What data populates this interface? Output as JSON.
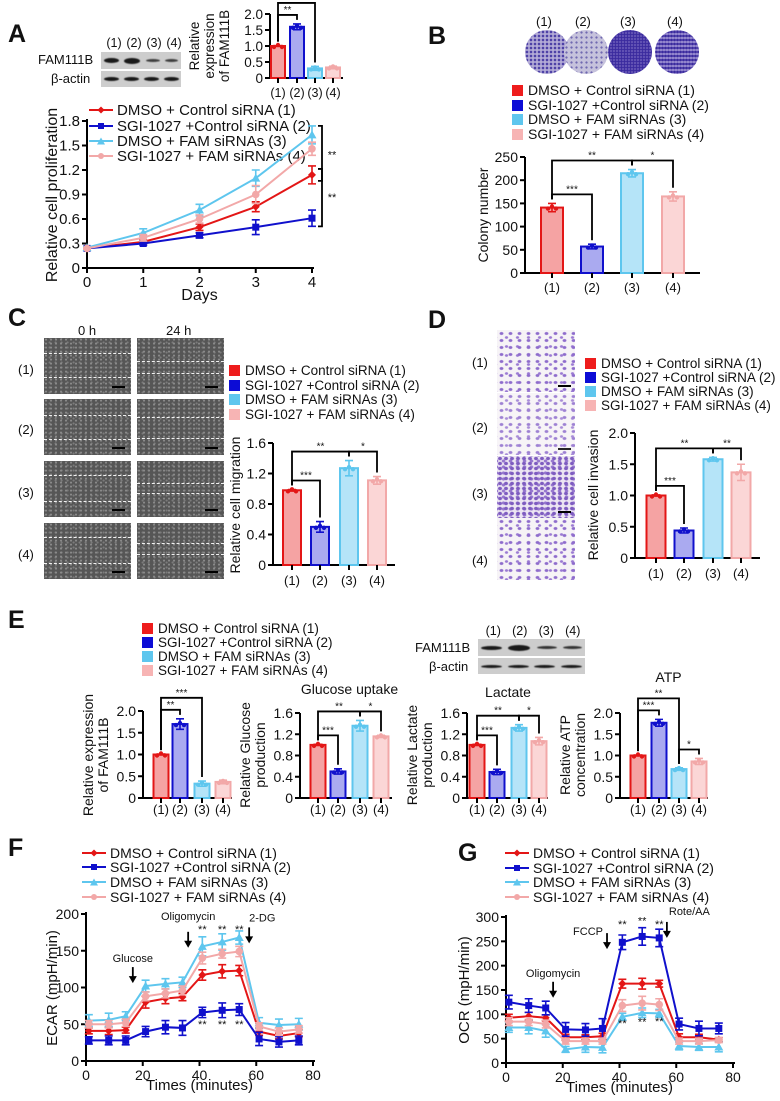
{
  "panel_labels": [
    "A",
    "B",
    "C",
    "D",
    "E",
    "F",
    "G"
  ],
  "groups": [
    "DMSO + Control siRNA (1)",
    "SGI-1027 +Control siRNA (2)",
    "DMSO + FAM siRNAs (3)",
    "SGI-1027 + FAM siRNAs (4)"
  ],
  "group_numbers": [
    "(1)",
    "(2)",
    "(3)",
    "(4)"
  ],
  "colors": {
    "group_solid": [
      "#ee1c1c",
      "#0c0cd6",
      "#5ec6ee",
      "#f7b4b4"
    ],
    "group_fill": [
      "#f5a3a3",
      "#aaaaf0",
      "#b5e4f8",
      "#fbd6d6"
    ],
    "group_edge": [
      "#e31616",
      "#1010cc",
      "#5ec6ee",
      "#f2a8a8"
    ]
  },
  "western_blot": {
    "rows": [
      "FAM111B",
      "β-actin"
    ]
  },
  "wound_healing": {
    "time_points": [
      "0 h",
      "24 h"
    ]
  },
  "chart_data": [
    {
      "id": "fam111b-inset",
      "type": "bar",
      "categories": [
        "(1)",
        "(2)",
        "(3)",
        "(4)"
      ],
      "values": [
        1.0,
        1.6,
        0.3,
        0.33
      ],
      "errors": [
        0.01,
        0.09,
        0.06,
        0.04
      ],
      "ylabel": [
        "Relative",
        "expression",
        "of FAM111B"
      ],
      "yticks": [
        "0",
        "0.5",
        "1.0",
        "1.5",
        "2.0"
      ],
      "ylim": [
        0,
        2.0
      ],
      "significance": [
        {
          "pair": [
            1,
            2
          ],
          "label": "**"
        },
        {
          "pair": [
            1,
            3
          ],
          "label": "***"
        }
      ]
    },
    {
      "id": "proliferation",
      "type": "line",
      "x": [
        0,
        1,
        2,
        3,
        4
      ],
      "xticks": [
        "0",
        "1",
        "2",
        "3",
        "4"
      ],
      "yticks": [
        "0",
        "0.3",
        "0.6",
        "0.9",
        "1.2",
        "1.5",
        "1.8"
      ],
      "xlim": [
        0,
        4
      ],
      "ylim": [
        0,
        1.8
      ],
      "xlabel": "Days",
      "ylabel": [
        "Relative cell proliferation"
      ],
      "series": [
        {
          "name": "DMSO + Control siRNA (1)",
          "marker": "diamond",
          "color": "#e31616",
          "values": [
            0.24,
            0.32,
            0.5,
            0.75,
            1.14
          ],
          "errors": [
            0.01,
            0.02,
            0.04,
            0.06,
            0.11
          ]
        },
        {
          "name": "SGI-1027 +Control siRNA (2)",
          "marker": "square",
          "color": "#1010cc",
          "values": [
            0.24,
            0.3,
            0.4,
            0.5,
            0.61
          ],
          "errors": [
            0.01,
            0.02,
            0.03,
            0.09,
            0.1
          ]
        },
        {
          "name": "DMSO + FAM siRNAs (3)",
          "marker": "triangle",
          "color": "#5ec6ee",
          "values": [
            0.25,
            0.43,
            0.71,
            1.1,
            1.63
          ],
          "errors": [
            0.01,
            0.05,
            0.07,
            0.1,
            0.11
          ]
        },
        {
          "name": "SGI-1027 + FAM siRNAs (4)",
          "marker": "circle",
          "color": "#f2a8a8",
          "values": [
            0.24,
            0.37,
            0.6,
            0.9,
            1.46
          ],
          "errors": [
            0.01,
            0.04,
            0.05,
            0.11,
            0.08
          ]
        }
      ],
      "brackets": [
        {
          "series": [
            3,
            1
          ],
          "label": "**"
        },
        {
          "series": [
            1,
            2
          ],
          "label": "**"
        }
      ]
    },
    {
      "id": "colony",
      "type": "bar",
      "categories": [
        "(1)",
        "(2)",
        "(3)",
        "(4)"
      ],
      "values": [
        141,
        57,
        215,
        165
      ],
      "errors": [
        9,
        5,
        8,
        10
      ],
      "ylabel": [
        "Colony number"
      ],
      "yticks": [
        "0",
        "50",
        "100",
        "150",
        "200",
        "250"
      ],
      "ylim": [
        0,
        250
      ],
      "significance": [
        {
          "pair": [
            1,
            2
          ],
          "label": "***"
        },
        {
          "pair": [
            1,
            3
          ],
          "label": "**"
        },
        {
          "pair": [
            3,
            4
          ],
          "label": "*"
        }
      ]
    },
    {
      "id": "migration",
      "type": "bar",
      "categories": [
        "(1)",
        "(2)",
        "(3)",
        "(4)"
      ],
      "values": [
        0.98,
        0.5,
        1.27,
        1.11
      ],
      "errors": [
        0.01,
        0.07,
        0.1,
        0.05
      ],
      "ylabel": [
        "Relative cell migration"
      ],
      "yticks": [
        "0",
        "0.4",
        "0.8",
        "1.2",
        "1.6"
      ],
      "ylim": [
        0,
        1.6
      ],
      "significance": [
        {
          "pair": [
            1,
            2
          ],
          "label": "***"
        },
        {
          "pair": [
            1,
            3
          ],
          "label": "**"
        },
        {
          "pair": [
            3,
            4
          ],
          "label": "*"
        }
      ]
    },
    {
      "id": "invasion",
      "type": "bar",
      "categories": [
        "(1)",
        "(2)",
        "(3)",
        "(4)"
      ],
      "values": [
        1.0,
        0.44,
        1.58,
        1.37
      ],
      "errors": [
        0.01,
        0.04,
        0.03,
        0.13
      ],
      "ylabel": [
        "Relative cell invasion"
      ],
      "yticks": [
        "0",
        "0.5",
        "1.0",
        "1.5",
        "2.0"
      ],
      "ylim": [
        0,
        2.0
      ],
      "significance": [
        {
          "pair": [
            1,
            2
          ],
          "label": "***"
        },
        {
          "pair": [
            1,
            3
          ],
          "label": "**"
        },
        {
          "pair": [
            3,
            4
          ],
          "label": "**"
        }
      ]
    },
    {
      "id": "fam111b-expression",
      "type": "bar",
      "categories": [
        "(1)",
        "(2)",
        "(3)",
        "(4)"
      ],
      "values": [
        1.0,
        1.7,
        0.33,
        0.37
      ],
      "errors": [
        0.01,
        0.12,
        0.06,
        0.04
      ],
      "ylabel": [
        "Relative expression",
        "of FAM111B"
      ],
      "yticks": [
        "0",
        "0.5",
        "1.0",
        "1.5",
        "2.0"
      ],
      "ylim": [
        0,
        2.0
      ],
      "significance": [
        {
          "pair": [
            1,
            2
          ],
          "label": "**"
        },
        {
          "pair": [
            1,
            3
          ],
          "label": "***"
        }
      ]
    },
    {
      "id": "glucose",
      "type": "bar",
      "title": "Glucose uptake",
      "categories": [
        "(1)",
        "(2)",
        "(3)",
        "(4)"
      ],
      "values": [
        1.0,
        0.5,
        1.36,
        1.16
      ],
      "errors": [
        0.01,
        0.05,
        0.1,
        0.02
      ],
      "ylabel": [
        "Relative Glucose",
        "production"
      ],
      "yticks": [
        "0",
        "0.4",
        "0.8",
        "1.2",
        "1.6"
      ],
      "ylim": [
        0,
        1.6
      ],
      "significance": [
        {
          "pair": [
            1,
            2
          ],
          "label": "***"
        },
        {
          "pair": [
            1,
            3
          ],
          "label": "**"
        },
        {
          "pair": [
            3,
            4
          ],
          "label": "*"
        }
      ]
    },
    {
      "id": "lactate",
      "type": "bar",
      "title": "Lactate",
      "categories": [
        "(1)",
        "(2)",
        "(3)",
        "(4)"
      ],
      "values": [
        1.0,
        0.49,
        1.32,
        1.07
      ],
      "errors": [
        0.01,
        0.05,
        0.06,
        0.07
      ],
      "ylabel": [
        "Relative Lactate",
        "production"
      ],
      "yticks": [
        "0",
        "0.4",
        "0.8",
        "1.2",
        "1.6"
      ],
      "ylim": [
        0,
        1.6
      ],
      "significance": [
        {
          "pair": [
            1,
            2
          ],
          "label": "***"
        },
        {
          "pair": [
            1,
            3
          ],
          "label": "**"
        },
        {
          "pair": [
            3,
            4
          ],
          "label": "*"
        }
      ]
    },
    {
      "id": "atp",
      "type": "bar",
      "title": "ATP",
      "categories": [
        "(1)",
        "(2)",
        "(3)",
        "(4)"
      ],
      "values": [
        1.0,
        1.77,
        0.68,
        0.86
      ],
      "errors": [
        0.01,
        0.08,
        0.03,
        0.07
      ],
      "ylabel": [
        "Relative ATP",
        "concentration"
      ],
      "yticks": [
        "0",
        "0.5",
        "1.0",
        "1.5",
        "2.0"
      ],
      "ylim": [
        0,
        2.0
      ],
      "significance": [
        {
          "pair": [
            1,
            2
          ],
          "label": "***"
        },
        {
          "pair": [
            1,
            3
          ],
          "label": "**"
        },
        {
          "pair": [
            3,
            4
          ],
          "label": "*"
        }
      ]
    },
    {
      "id": "ecar",
      "type": "line",
      "x": [
        1,
        8,
        14,
        21,
        28,
        34,
        41,
        48,
        54,
        61,
        68,
        75
      ],
      "xticks": [
        "0",
        "20",
        "40",
        "60",
        "80"
      ],
      "yticks": [
        "0",
        "50",
        "100",
        "150",
        "200"
      ],
      "xlim": [
        0,
        80
      ],
      "ylim": [
        0,
        200
      ],
      "xlabel": "Times (minutes)",
      "ylabel": [
        "ECAR (mpH/min)"
      ],
      "series": [
        {
          "name": "DMSO + Control siRNA (1)",
          "marker": "diamond",
          "color": "#e31616",
          "values": [
            41,
            41,
            42,
            80,
            85,
            87,
            117,
            122,
            123,
            40,
            34,
            38
          ],
          "errors": [
            4,
            5,
            4,
            8,
            7,
            5,
            7,
            9,
            7,
            5,
            4,
            5
          ]
        },
        {
          "name": "SGI-1027 +Control siRNA (2)",
          "marker": "square",
          "color": "#1010cc",
          "values": [
            28,
            28,
            28,
            40,
            46,
            45,
            66,
            69,
            70,
            30,
            26,
            28
          ],
          "errors": [
            5,
            6,
            6,
            7,
            9,
            10,
            7,
            10,
            8,
            9,
            7,
            6
          ]
        },
        {
          "name": "DMSO + FAM siRNAs (3)",
          "marker": "triangle",
          "color": "#5ec6ee",
          "values": [
            55,
            56,
            61,
            102,
            105,
            107,
            156,
            162,
            168,
            52,
            49,
            50
          ],
          "errors": [
            8,
            9,
            6,
            8,
            7,
            7,
            13,
            11,
            9,
            7,
            8,
            8
          ]
        },
        {
          "name": "SGI-1027 + FAM siRNAs (4)",
          "marker": "circle",
          "color": "#f2a8a8",
          "values": [
            50,
            50,
            52,
            88,
            92,
            96,
            140,
            146,
            149,
            47,
            40,
            43
          ],
          "errors": [
            5,
            5,
            5,
            6,
            6,
            6,
            8,
            6,
            7,
            5,
            5,
            5
          ]
        }
      ],
      "annotations": [
        {
          "label": "Glucose",
          "x": 16.5,
          "y": 106,
          "side": "top"
        },
        {
          "label": "Oligomycin",
          "x": 36,
          "y": 154,
          "side": "top"
        },
        {
          "label": "2-DG",
          "x": 57.5,
          "y": 160,
          "side": "top-right"
        }
      ],
      "marks": [
        {
          "label": "**",
          "x": 41,
          "y": 174
        },
        {
          "label": "**",
          "x": 48,
          "y": 174
        },
        {
          "label": "**",
          "x": 54,
          "y": 174
        },
        {
          "label": "**",
          "x": 41,
          "y": 45
        },
        {
          "label": "**",
          "x": 48,
          "y": 45
        },
        {
          "label": "**",
          "x": 54,
          "y": 45
        }
      ]
    },
    {
      "id": "ocr",
      "type": "line",
      "x": [
        1,
        8,
        14,
        21,
        28,
        34,
        41,
        48,
        54,
        61,
        68,
        75
      ],
      "xticks": [
        "0",
        "20",
        "40",
        "60",
        "80"
      ],
      "yticks": [
        "0",
        "50",
        "100",
        "150",
        "200",
        "250",
        "300"
      ],
      "xlim": [
        0,
        80
      ],
      "ylim": [
        0,
        300
      ],
      "xlabel": "Times (minutes)",
      "ylabel": [
        "OCR (mpH/min)"
      ],
      "series": [
        {
          "name": "DMSO + Control siRNA (1)",
          "marker": "diamond",
          "color": "#e31616",
          "values": [
            93,
            96,
            93,
            53,
            53,
            55,
            163,
            163,
            163,
            53,
            53,
            48
          ],
          "errors": [
            7,
            8,
            6,
            6,
            5,
            6,
            9,
            11,
            7,
            7,
            6,
            4
          ]
        },
        {
          "name": "SGI-1027 +Control siRNA (2)",
          "marker": "square",
          "color": "#1010cc",
          "values": [
            125,
            118,
            113,
            69,
            68,
            71,
            248,
            260,
            257,
            80,
            71,
            71
          ],
          "errors": [
            14,
            14,
            14,
            14,
            13,
            20,
            15,
            18,
            18,
            12,
            15,
            11
          ]
        },
        {
          "name": "DMSO + FAM siRNAs (3)",
          "marker": "triangle",
          "color": "#5ec6ee",
          "values": [
            73,
            73,
            66,
            28,
            33,
            32,
            95,
            103,
            102,
            35,
            33,
            33
          ],
          "errors": [
            10,
            13,
            13,
            6,
            11,
            11,
            7,
            10,
            8,
            8,
            7,
            10
          ]
        },
        {
          "name": "SGI-1027 + FAM siRNAs (4)",
          "marker": "circle",
          "color": "#f2a8a8",
          "values": [
            85,
            85,
            80,
            45,
            45,
            45,
            118,
            123,
            120,
            45,
            45,
            47
          ],
          "errors": [
            8,
            8,
            8,
            6,
            6,
            6,
            12,
            14,
            12,
            6,
            6,
            5
          ]
        }
      ],
      "annotations": [
        {
          "label": "Oligomycin",
          "x": 16.6,
          "y": 134,
          "side": "top"
        },
        {
          "label": "FCCP",
          "x": 35.6,
          "y": 234,
          "side": "left"
        },
        {
          "label": "Rote/AA",
          "x": 56.7,
          "y": 257,
          "side": "top-right"
        }
      ],
      "marks": [
        {
          "label": "**",
          "x": 41,
          "y": 277
        },
        {
          "label": "**",
          "x": 48,
          "y": 285
        },
        {
          "label": "**",
          "x": 54,
          "y": 277
        },
        {
          "label": "**",
          "x": 41,
          "y": 74
        },
        {
          "label": "**",
          "x": 48,
          "y": 77
        },
        {
          "label": "**",
          "x": 54,
          "y": 78
        }
      ]
    }
  ]
}
